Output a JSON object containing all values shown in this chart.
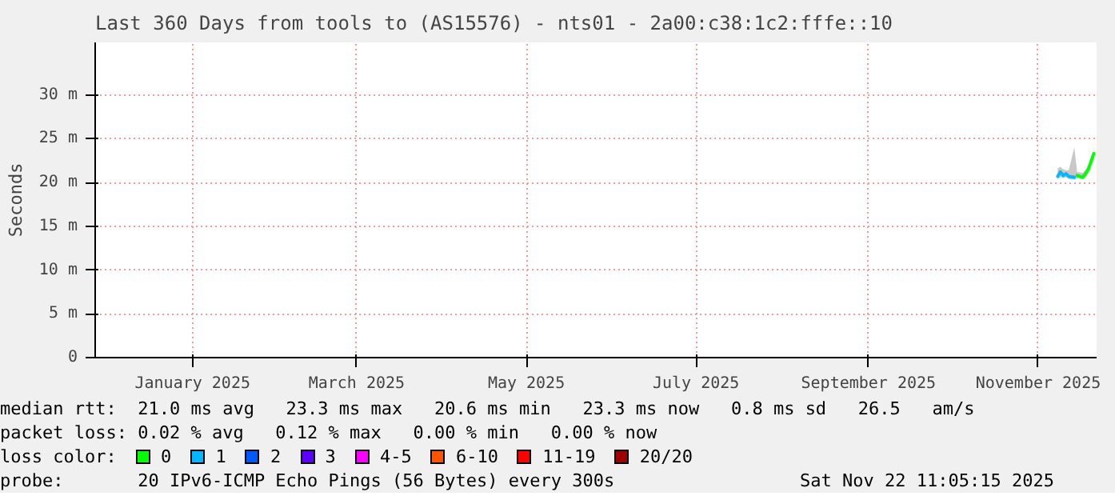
{
  "chart_data": {
    "type": "line",
    "title": "Last 360 Days from tools to (AS15576) - nts01 - 2a00:c38:1c2:fffe::10",
    "ylabel": "Seconds",
    "x": [
      "2025-11-08",
      "2025-11-09",
      "2025-11-10",
      "2025-11-11",
      "2025-11-12",
      "2025-11-14",
      "2025-11-15",
      "2025-11-17",
      "2025-11-18",
      "2025-11-19",
      "2025-11-20",
      "2025-11-21"
    ],
    "xlim": [
      "2024-11-27",
      "2025-11-22"
    ],
    "xticks": [
      {
        "value": "2025-01-01",
        "label": "January 2025"
      },
      {
        "value": "2025-03-01",
        "label": "March 2025"
      },
      {
        "value": "2025-05-01",
        "label": "May 2025"
      },
      {
        "value": "2025-07-01",
        "label": "July 2025"
      },
      {
        "value": "2025-09-01",
        "label": "September 2025"
      },
      {
        "value": "2025-11-01",
        "label": "November 2025"
      }
    ],
    "ylim": [
      0,
      36
    ],
    "yticks": [
      0,
      {
        "value": 5,
        "label": "5 m"
      },
      {
        "value": 10,
        "label": "10 m"
      },
      {
        "value": 15,
        "label": "15 m"
      },
      {
        "value": 20,
        "label": "20 m"
      },
      {
        "value": 25,
        "label": "25 m"
      },
      {
        "value": 30,
        "label": "30 m"
      }
    ],
    "grid": true,
    "legend": "bottom",
    "legend_title": "loss color:",
    "series": [
      {
        "name": "0",
        "color": "#00ff00",
        "values": [
          null,
          null,
          null,
          null,
          null,
          null,
          20.8,
          20.6,
          21.0,
          21.5,
          22.4,
          23.3
        ],
        "lower": [
          20.4,
          20.6,
          20.5,
          20.6,
          20.4,
          20.3,
          20.5,
          20.4,
          20.6,
          21.1,
          21.9,
          22.8
        ],
        "upper": [
          21.6,
          21.8,
          21.5,
          21.4,
          21.4,
          24.0,
          21.2,
          21.1,
          21.4,
          21.9,
          22.8,
          23.6
        ]
      },
      {
        "name": "1",
        "color": "#00b8ff",
        "values": [
          20.7,
          21.2,
          20.8,
          21.0,
          20.7,
          20.6,
          null,
          null,
          null,
          null,
          null,
          null
        ]
      },
      {
        "name": "2",
        "color": "#0059ff",
        "values": [
          null,
          null,
          null,
          null,
          null,
          null,
          null,
          null,
          null,
          null,
          null,
          null
        ]
      },
      {
        "name": "3",
        "color": "#5e00ff",
        "values": [
          null,
          null,
          null,
          null,
          null,
          null,
          null,
          null,
          null,
          null,
          null,
          null
        ]
      },
      {
        "name": "4-5",
        "color": "#ff00ff",
        "values": [
          null,
          null,
          null,
          null,
          null,
          null,
          null,
          null,
          null,
          null,
          null,
          null
        ]
      },
      {
        "name": "6-10",
        "color": "#ff5500",
        "values": [
          null,
          null,
          null,
          null,
          null,
          null,
          null,
          null,
          null,
          null,
          null,
          null
        ]
      },
      {
        "name": "11-19",
        "color": "#ff0000",
        "values": [
          null,
          null,
          null,
          null,
          null,
          null,
          null,
          null,
          null,
          null,
          null,
          null
        ]
      },
      {
        "name": "20/20",
        "color": "#a10000",
        "values": [
          null,
          null,
          null,
          null,
          null,
          null,
          null,
          null,
          null,
          null,
          null,
          null
        ]
      }
    ],
    "annotations": [
      "median rtt:  21.0 ms avg   23.3 ms max   20.6 ms min   23.3 ms now   0.8 ms sd   26.5   am/s",
      "packet loss: 0.02 % avg   0.12 % max   0.00 % min   0.00 % now",
      "probe:       20 IPv6-ICMP Echo Pings (56 Bytes) every 300s",
      "Sat Nov 22 11:05:15 2025"
    ]
  }
}
